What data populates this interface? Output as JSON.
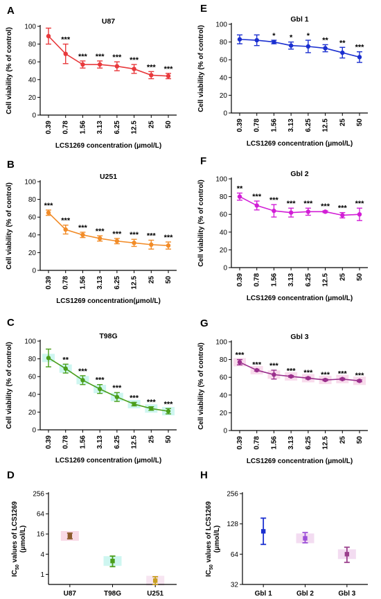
{
  "chart_data": [
    {
      "type": "line",
      "panel_letter": "A",
      "title": "U87",
      "color": "#e8393c",
      "ylabel": "Cell viability (% of control)",
      "xlabel": "LCS1269 concentration (μmol/L)",
      "categories": [
        "0.39",
        "0.78",
        "1.56",
        "3.13",
        "6.25",
        "12.5",
        "25",
        "50"
      ],
      "values": [
        89,
        69,
        57,
        57,
        55,
        52,
        45,
        44
      ],
      "errors": [
        9,
        11,
        4,
        4,
        5,
        5,
        4,
        3
      ],
      "significance": [
        "",
        "***",
        "***",
        "***",
        "***",
        "***",
        "***",
        "***"
      ],
      "ylim": [
        0,
        100
      ],
      "yticks": [
        0,
        20,
        40,
        60,
        80,
        100
      ],
      "grid": false
    },
    {
      "type": "line",
      "panel_letter": "B",
      "title": "U251",
      "color": "#f28c28",
      "ylabel": "Cell viability (% of control)",
      "xlabel": "LCS1269 concentration(μmol/L)",
      "categories": [
        "0.39",
        "0.78",
        "1.56",
        "3.13",
        "6.25",
        "12.5",
        "25",
        "50"
      ],
      "values": [
        65,
        46,
        40,
        36,
        33,
        31,
        29,
        28
      ],
      "errors": [
        3,
        5,
        3,
        3,
        3,
        4,
        5,
        4
      ],
      "significance": [
        "***",
        "***",
        "***",
        "***",
        "***",
        "***",
        "***",
        "***"
      ],
      "ylim": [
        0,
        100
      ],
      "yticks": [
        0,
        20,
        40,
        60,
        80,
        100
      ],
      "grid": false
    },
    {
      "type": "line",
      "panel_letter": "C",
      "title": "T98G",
      "color": "#4a9e1a",
      "highlight": "#c9f5ee",
      "ylabel": "Cell viability (% of control)",
      "xlabel": "LCS1269 concentration (μmol/L)",
      "categories": [
        "0.39",
        "0.78",
        "1.56",
        "3.13",
        "6.25",
        "12.5",
        "25",
        "50"
      ],
      "values": [
        81,
        69,
        56,
        46,
        37,
        29,
        24,
        21
      ],
      "errors": [
        10,
        5,
        5,
        5,
        5,
        2,
        2,
        3
      ],
      "significance": [
        "",
        "**",
        "***",
        "***",
        "***",
        "***",
        "***",
        "***"
      ],
      "ylim": [
        0,
        100
      ],
      "yticks": [
        0,
        20,
        40,
        60,
        80,
        100
      ],
      "grid": false
    },
    {
      "type": "scatter",
      "panel_letter": "D",
      "ylabel": "IC50 values of LCS1269 (μmol/L)",
      "ylabel_parts": [
        "IC",
        "50",
        " values of LCS1269",
        "(μmol/L)"
      ],
      "categories": [
        "U87",
        "T98G",
        "U251"
      ],
      "values": [
        14,
        2.5,
        0.65
      ],
      "errors_low": [
        2.5,
        0.8,
        0.15
      ],
      "errors_high": [
        3,
        1,
        0.2
      ],
      "colors": [
        "#8b5a2b",
        "#4a9e1a",
        "#c8a020"
      ],
      "highlights": [
        "#f8d6e3",
        "#c9f5ee",
        "#f6e2ef"
      ],
      "yscale": "log2",
      "ylim": [
        0.5,
        256
      ],
      "yticks": [
        1,
        4,
        16,
        64,
        256
      ],
      "grid": false
    },
    {
      "type": "line",
      "panel_letter": "E",
      "title": "Gbl 1",
      "color": "#1a2fd0",
      "ylabel": "Cell viability (% of control)",
      "xlabel": "LCS1269 concentration (μmol/L)",
      "categories": [
        "0.39",
        "0.78",
        "1.56",
        "3.13",
        "6.25",
        "12.5",
        "25",
        "50"
      ],
      "values": [
        83,
        82,
        80,
        76,
        75,
        73,
        68,
        63
      ],
      "errors": [
        5,
        6,
        2,
        4,
        7,
        4,
        6,
        6
      ],
      "significance": [
        "",
        "",
        "*",
        "*",
        "*",
        "**",
        "**",
        "***"
      ],
      "ylim": [
        0,
        100
      ],
      "yticks": [
        0,
        20,
        40,
        60,
        80,
        100
      ],
      "grid": false
    },
    {
      "type": "line",
      "panel_letter": "F",
      "title": "Gbl 2",
      "color": "#d21ed6",
      "ylabel": "Cell viability (% of control)",
      "xlabel": "LCS1269 concentration (μmol/L)",
      "categories": [
        "0.39",
        "0.78",
        "1.56",
        "3.13",
        "6.25",
        "12.5",
        "25",
        "50"
      ],
      "values": [
        80,
        70,
        64,
        62,
        63,
        63,
        59,
        60
      ],
      "errors": [
        4,
        5,
        7,
        5,
        4,
        1,
        3,
        7
      ],
      "significance": [
        "**",
        "***",
        "***",
        "***",
        "***",
        "***",
        "***",
        "***"
      ],
      "ylim": [
        0,
        100
      ],
      "yticks": [
        0,
        20,
        40,
        60,
        80,
        100
      ],
      "grid": false
    },
    {
      "type": "line",
      "panel_letter": "G",
      "title": "Gbl 3",
      "color": "#9a2f8c",
      "highlight": "#f7d7ea",
      "ylabel": "Cell viability (% of control)",
      "xlabel": "LCS1269 concentration (μmol/L)",
      "categories": [
        "0.39",
        "0.78",
        "1.56",
        "3.13",
        "6.25",
        "12.5",
        "25",
        "50"
      ],
      "values": [
        77,
        68,
        63,
        61,
        59,
        57,
        58,
        56
      ],
      "errors": [
        3,
        1,
        5,
        1,
        1,
        1,
        1,
        1
      ],
      "significance": [
        "***",
        "***",
        "***",
        "***",
        "***",
        "***",
        "***",
        "***"
      ],
      "ylim": [
        0,
        100
      ],
      "yticks": [
        0,
        20,
        40,
        60,
        80,
        100
      ],
      "grid": false
    },
    {
      "type": "scatter",
      "panel_letter": "H",
      "ylabel": "IC50 values of LCS1269 (μmol/L)",
      "ylabel_parts": [
        "IC",
        "50",
        " values of LCS1269",
        "(μmol/L)"
      ],
      "categories": [
        "Gbl 1",
        "Gbl 2",
        "Gbl 3"
      ],
      "values": [
        108,
        92,
        64
      ],
      "errors_low": [
        28,
        9,
        11
      ],
      "errors_high": [
        38,
        13,
        11
      ],
      "colors": [
        "#1a2fd0",
        "#9c4fd8",
        "#9a3f8c"
      ],
      "highlights": [
        "",
        "#f2d8f0",
        "#f2d8f0"
      ],
      "yscale": "log2",
      "ylim": [
        32,
        256
      ],
      "yticks": [
        32,
        64,
        128,
        256
      ],
      "grid": false
    }
  ]
}
